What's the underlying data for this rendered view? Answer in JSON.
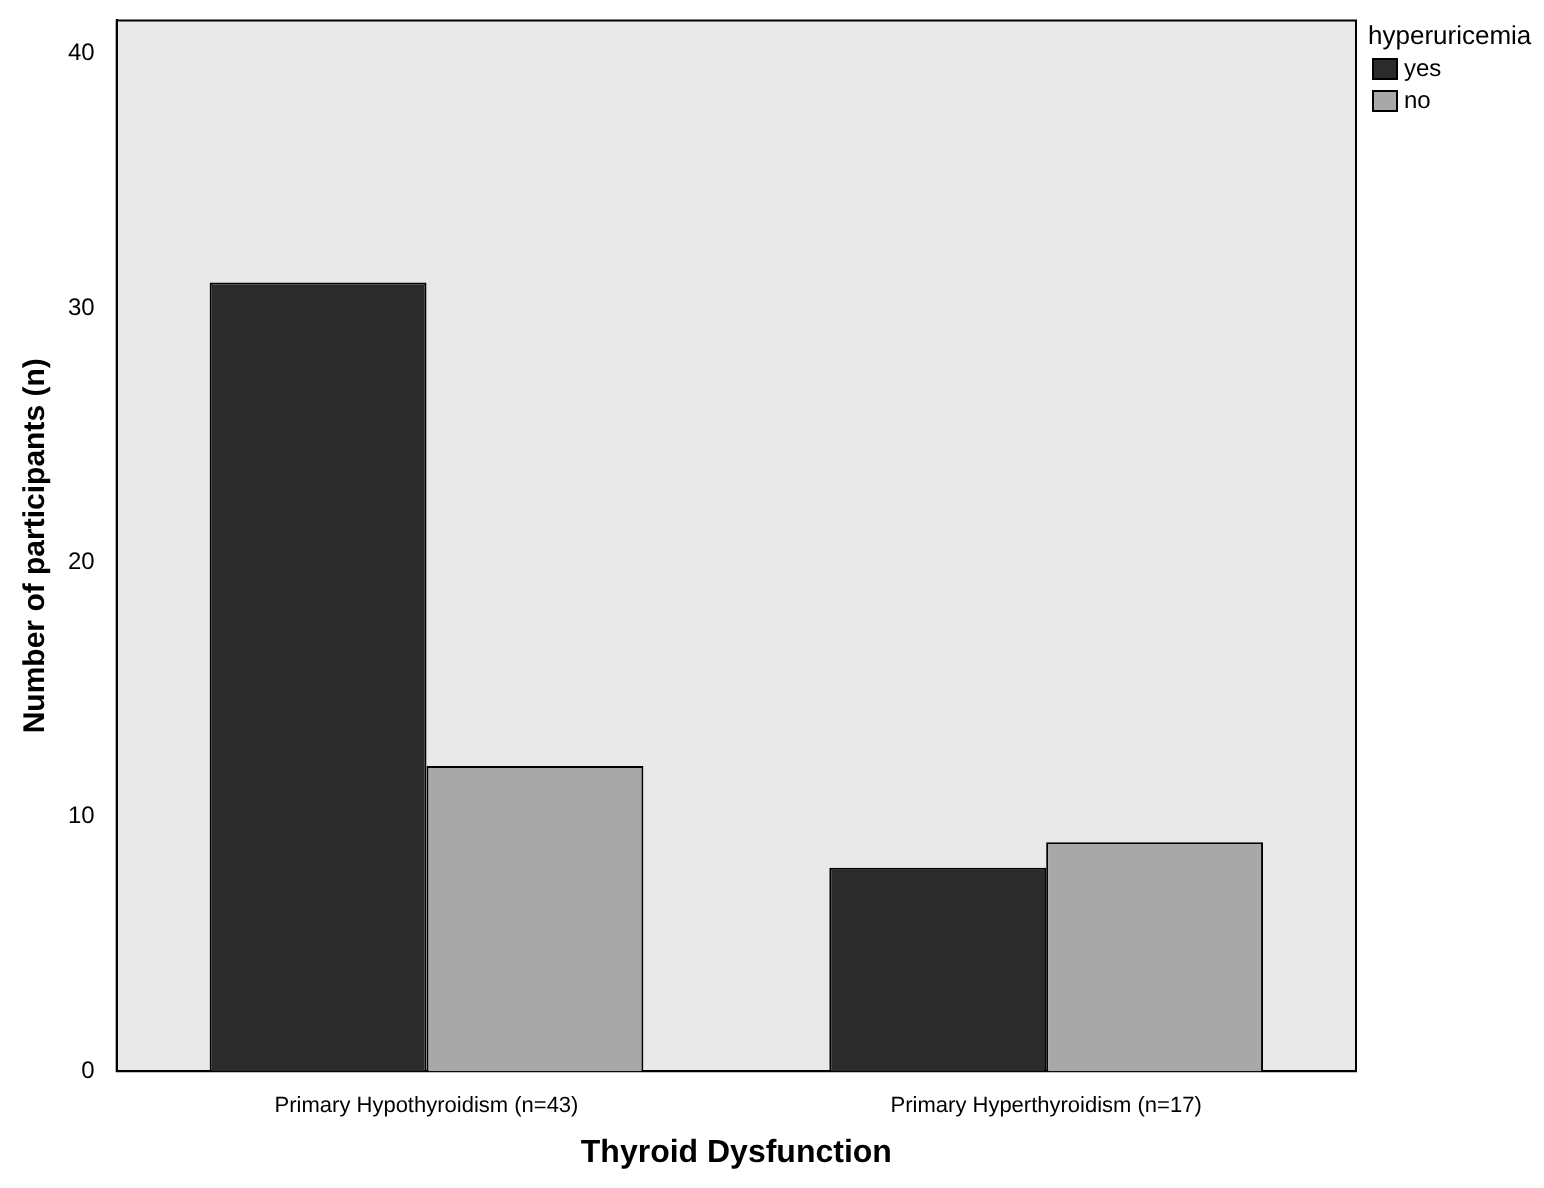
{
  "chart_data": {
    "type": "bar",
    "xlabel": "Thyroid Dysfunction",
    "ylabel": "Number of participants (n)",
    "legend_title": "hyperuricemia",
    "categories": [
      "Primary Hypothyroidism (n=43)",
      "Primary Hyperthyroidism (n=17)"
    ],
    "series": [
      {
        "name": "yes",
        "color": "#2b2b2b",
        "values": [
          31,
          8
        ]
      },
      {
        "name": "no",
        "color": "#a8a8a8",
        "values": [
          12,
          9
        ]
      }
    ],
    "ylim": [
      0,
      41.3
    ],
    "yticks": [
      0,
      10,
      20,
      30,
      40
    ],
    "grid": false,
    "legend": "top right"
  }
}
